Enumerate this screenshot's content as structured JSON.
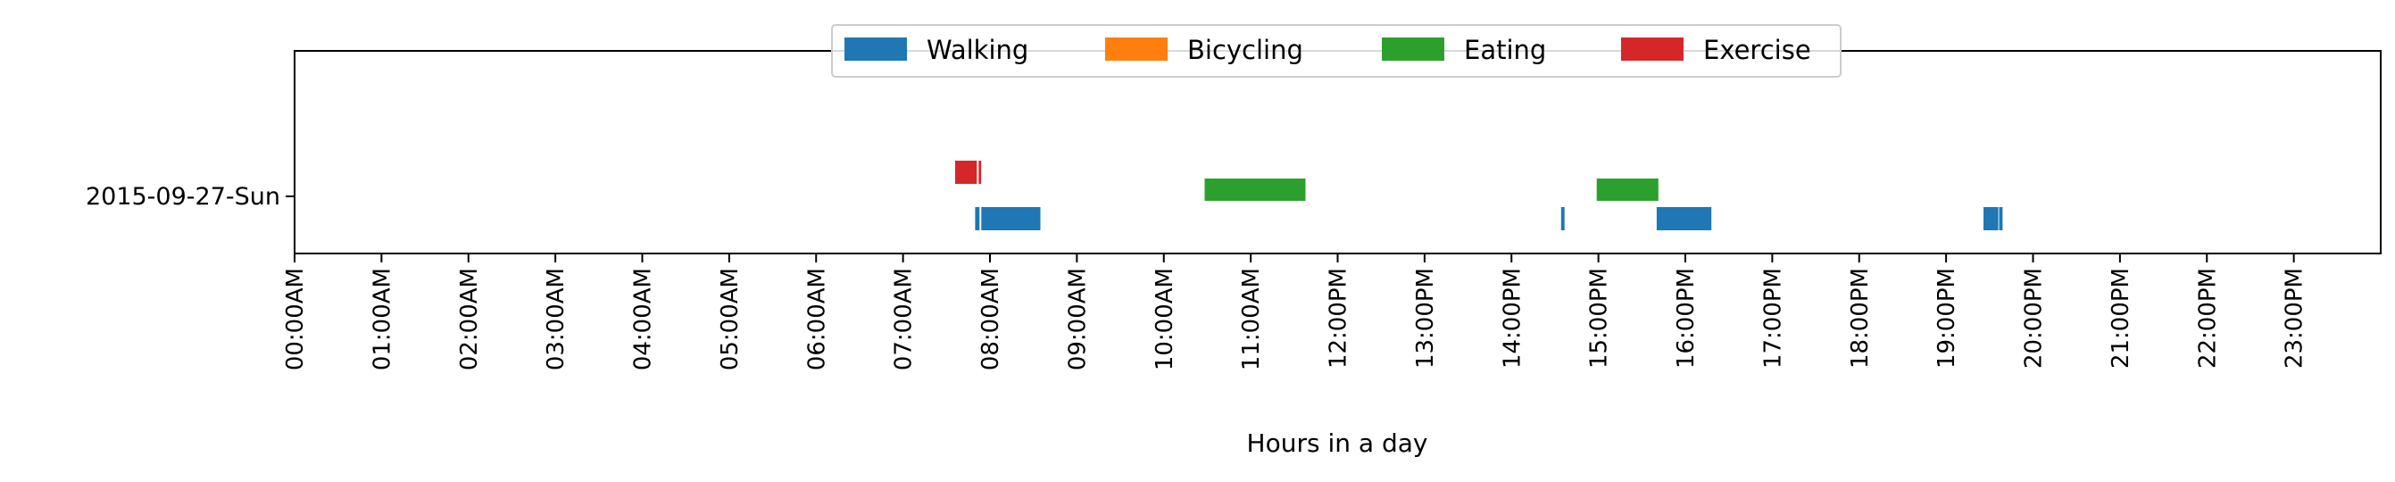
{
  "chart_data": {
    "type": "timeline",
    "title": "",
    "xlabel": "Hours in a day",
    "ylabel": "",
    "xlim": [
      0,
      24
    ],
    "x_units": "hours",
    "x_tick_labels": [
      "00:00AM",
      "01:00AM",
      "02:00AM",
      "03:00AM",
      "04:00AM",
      "05:00AM",
      "06:00AM",
      "07:00AM",
      "08:00AM",
      "09:00AM",
      "10:00AM",
      "11:00AM",
      "12:00PM",
      "13:00PM",
      "14:00PM",
      "15:00PM",
      "16:00PM",
      "17:00PM",
      "18:00PM",
      "19:00PM",
      "20:00PM",
      "21:00PM",
      "22:00PM",
      "23:00PM"
    ],
    "rows": [
      "2015-09-27-Sun"
    ],
    "grid": false,
    "legend_position": "top-center",
    "series": [
      {
        "name": "Walking",
        "color": "#1f77b4",
        "lane": "below",
        "intervals": [
          [
            7.83,
            7.88
          ],
          [
            7.9,
            8.58
          ],
          [
            14.57,
            14.61
          ],
          [
            15.67,
            16.3
          ],
          [
            19.43,
            19.6
          ],
          [
            19.61,
            19.65
          ]
        ]
      },
      {
        "name": "Bicycling",
        "color": "#ff7f0e",
        "lane": "below",
        "intervals": []
      },
      {
        "name": "Eating",
        "color": "#2ca02c",
        "lane": "middle",
        "intervals": [
          [
            10.47,
            11.63
          ],
          [
            14.98,
            15.69
          ]
        ]
      },
      {
        "name": "Exercise",
        "color": "#d62728",
        "lane": "above",
        "intervals": [
          [
            7.6,
            7.85
          ],
          [
            7.87,
            7.9
          ]
        ]
      }
    ]
  }
}
